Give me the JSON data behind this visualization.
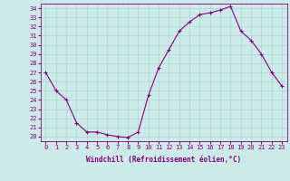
{
  "hours": [
    0,
    1,
    2,
    3,
    4,
    5,
    6,
    7,
    8,
    9,
    10,
    11,
    12,
    13,
    14,
    15,
    16,
    17,
    18,
    19,
    20,
    21,
    22,
    23
  ],
  "values": [
    27,
    25,
    24,
    21.5,
    20.5,
    20.5,
    20.2,
    20.0,
    19.9,
    20.5,
    24.5,
    27.5,
    29.5,
    31.5,
    32.5,
    33.3,
    33.5,
    33.8,
    34.2,
    31.5,
    30.5,
    29.0,
    27.0,
    25.5
  ],
  "xlabel": "Windchill (Refroidissement éolien,°C)",
  "ylim": [
    19.5,
    34.5
  ],
  "xlim": [
    -0.5,
    23.5
  ],
  "yticks": [
    20,
    21,
    22,
    23,
    24,
    25,
    26,
    27,
    28,
    29,
    30,
    31,
    32,
    33,
    34
  ],
  "xticks": [
    0,
    1,
    2,
    3,
    4,
    5,
    6,
    7,
    8,
    9,
    10,
    11,
    12,
    13,
    14,
    15,
    16,
    17,
    18,
    19,
    20,
    21,
    22,
    23
  ],
  "line_color": "#800080",
  "marker": "+",
  "bg_color": "#cdeaea",
  "grid_color": "#b0d4d4",
  "tick_color": "#800080",
  "xlabel_color": "#800080",
  "tick_fontsize": 5,
  "xlabel_fontsize": 5.5,
  "markersize": 3,
  "linewidth": 0.8
}
